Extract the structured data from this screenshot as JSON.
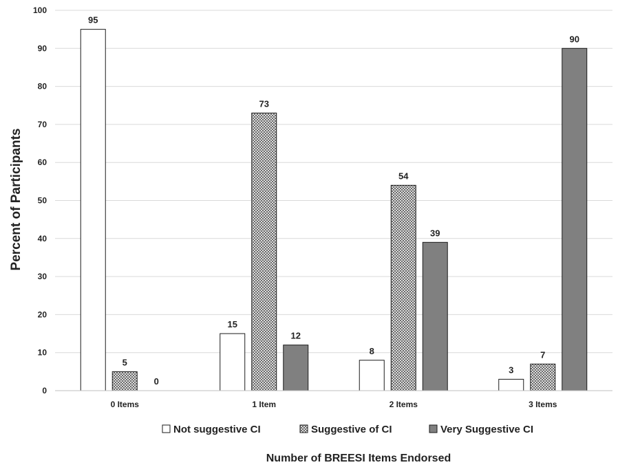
{
  "chart_data": {
    "type": "bar",
    "title": "",
    "xlabel": "Number of BREESI Items Endorsed",
    "ylabel": "Percent of Participants",
    "ylim": [
      0,
      100
    ],
    "yticks": [
      0,
      10,
      20,
      30,
      40,
      50,
      60,
      70,
      80,
      90,
      100
    ],
    "grid": true,
    "legend_position": "bottom",
    "categories": [
      "0 Items",
      "1 Item",
      "2 Items",
      "3 Items"
    ],
    "series": [
      {
        "name": "Not suggestive CI",
        "values": [
          95,
          15,
          8,
          3
        ],
        "fill": "#ffffff",
        "pattern": "none"
      },
      {
        "name": "Suggestive of CI",
        "values": [
          5,
          73,
          54,
          7
        ],
        "fill": "#d0d0d0",
        "pattern": "crosshatch"
      },
      {
        "name": "Very Suggestive CI",
        "values": [
          0,
          12,
          39,
          90
        ],
        "fill": "#808080",
        "pattern": "none"
      }
    ],
    "colors": {
      "grid": "#d9d9d9",
      "axis": "#bfbfbf",
      "bar_stroke": "#1a1a1a"
    }
  }
}
